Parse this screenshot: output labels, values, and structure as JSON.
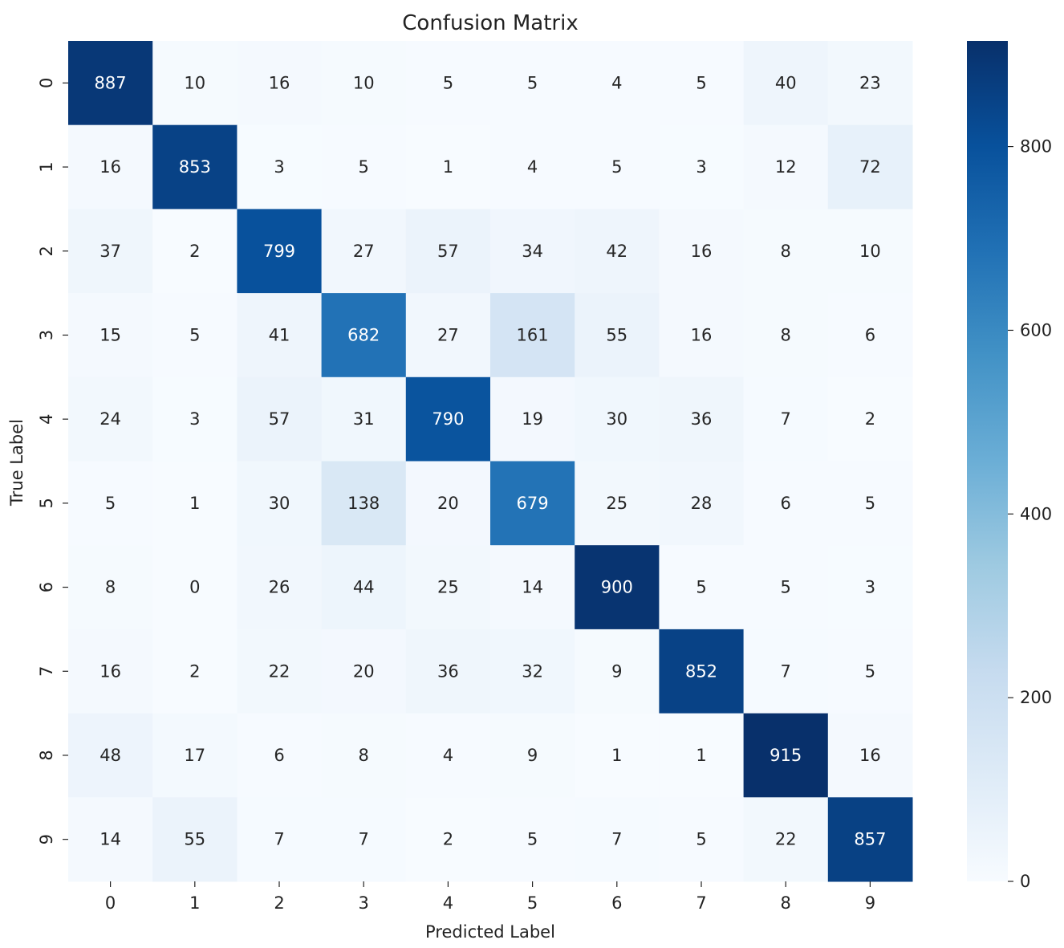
{
  "chart_data": {
    "type": "heatmap",
    "title": "Confusion Matrix",
    "xlabel": "Predicted Label",
    "ylabel": "True Label",
    "x_categories": [
      "0",
      "1",
      "2",
      "3",
      "4",
      "5",
      "6",
      "7",
      "8",
      "9"
    ],
    "y_categories": [
      "0",
      "1",
      "2",
      "3",
      "4",
      "5",
      "6",
      "7",
      "8",
      "9"
    ],
    "values": [
      [
        887,
        10,
        16,
        10,
        5,
        5,
        4,
        5,
        40,
        23
      ],
      [
        16,
        853,
        3,
        5,
        1,
        4,
        5,
        3,
        12,
        72
      ],
      [
        37,
        2,
        799,
        27,
        57,
        34,
        42,
        16,
        8,
        10
      ],
      [
        15,
        5,
        41,
        682,
        27,
        161,
        55,
        16,
        8,
        6
      ],
      [
        24,
        3,
        57,
        31,
        790,
        19,
        30,
        36,
        7,
        2
      ],
      [
        5,
        1,
        30,
        138,
        20,
        679,
        25,
        28,
        6,
        5
      ],
      [
        8,
        0,
        26,
        44,
        25,
        14,
        900,
        5,
        5,
        3
      ],
      [
        16,
        2,
        22,
        20,
        36,
        32,
        9,
        852,
        7,
        5
      ],
      [
        48,
        17,
        6,
        8,
        4,
        9,
        1,
        1,
        915,
        16
      ],
      [
        14,
        55,
        7,
        7,
        2,
        5,
        7,
        5,
        22,
        857
      ]
    ],
    "colormap": "Blues",
    "colorbar": {
      "range": [
        0,
        915
      ],
      "ticks": [
        "0",
        "200",
        "400",
        "600",
        "800"
      ]
    },
    "annotated": true,
    "grid": false
  }
}
